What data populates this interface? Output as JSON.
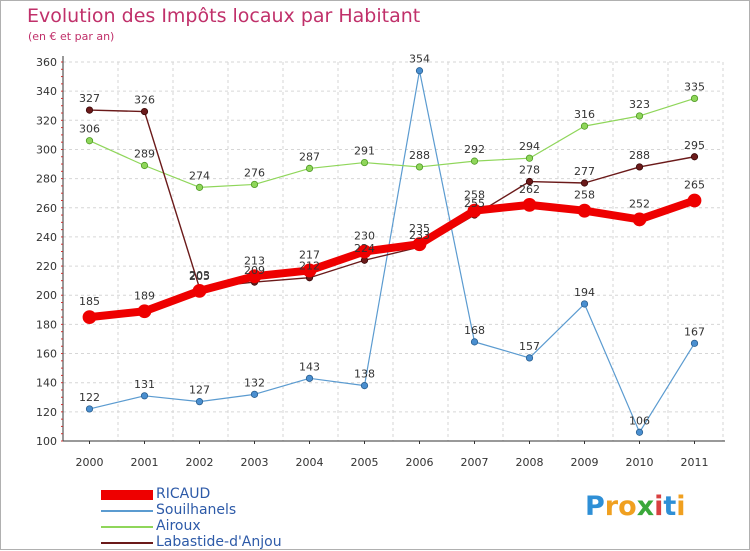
{
  "title": "Evolution des Impôts locaux par Habitant",
  "subtitle": "(en € et par an)",
  "brand": {
    "letters": [
      "P",
      "r",
      "o",
      "x",
      "i",
      "t",
      "i"
    ],
    "colors": [
      "#2e8fd6",
      "#f0a020",
      "#f0a020",
      "#3aa83a",
      "#d84040",
      "#2e8fd6",
      "#f0a020"
    ]
  },
  "chart_data": {
    "type": "line",
    "title": "Evolution des Impôts locaux par Habitant",
    "ylabel": "(en € et par an)",
    "xlabel": "",
    "x": [
      "2000",
      "2001",
      "2002",
      "2003",
      "2004",
      "2005",
      "2006",
      "2007",
      "2008",
      "2009",
      "2010",
      "2011"
    ],
    "ylim": [
      100,
      360
    ],
    "yticks": [
      "100",
      "120",
      "140",
      "160",
      "180",
      "200",
      "220",
      "240",
      "260",
      "280",
      "300",
      "320",
      "340",
      "360"
    ],
    "grid": true,
    "legend_position": "bottom-left",
    "series": [
      {
        "name": "Souilhanels",
        "color": "#5b9bd0",
        "values": [
          122,
          131,
          127,
          132,
          143,
          138,
          354,
          168,
          157,
          194,
          106,
          167
        ]
      },
      {
        "name": "Airoux",
        "color": "#8fd65a",
        "values": [
          306,
          289,
          274,
          276,
          287,
          291,
          288,
          292,
          294,
          316,
          323,
          335
        ]
      },
      {
        "name": "Labastide-d'Anjou",
        "color": "#6b1a1a",
        "values": [
          327,
          326,
          205,
          209,
          212,
          224,
          233,
          255,
          278,
          277,
          288,
          295
        ]
      },
      {
        "name": "RICAUD",
        "color": "#ee0000",
        "values": [
          185,
          189,
          203,
          213,
          217,
          230,
          235,
          258,
          262,
          258,
          252,
          265
        ]
      }
    ],
    "legend_order": [
      "RICAUD",
      "Souilhanels",
      "Airoux",
      "Labastide-d'Anjou"
    ]
  }
}
